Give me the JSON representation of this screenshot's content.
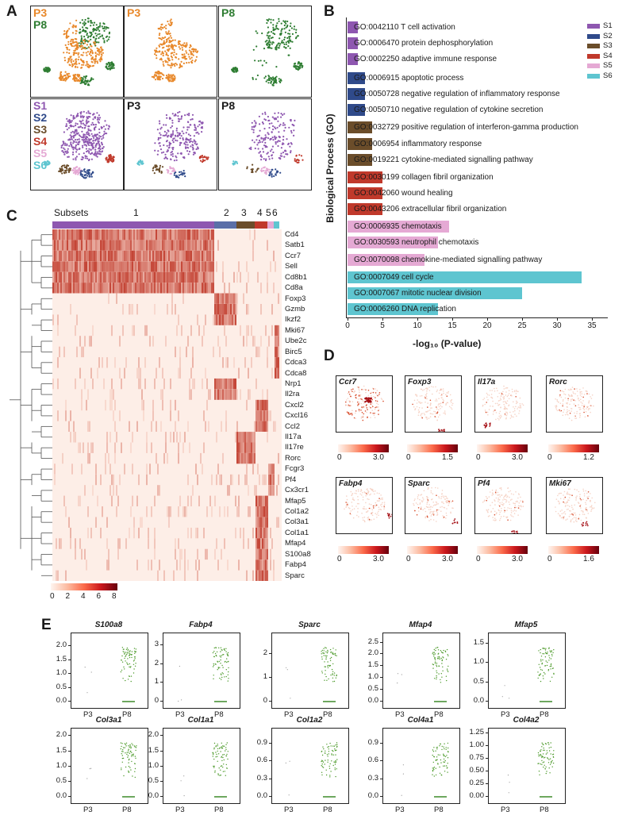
{
  "panels": {
    "a": "A",
    "b": "B",
    "c": "C",
    "d": "D",
    "e": "E"
  },
  "tsne": {
    "top": [
      {
        "labels": [
          "P3",
          "P8"
        ],
        "colors": [
          "#e8882a",
          "#2e7d32"
        ]
      },
      {
        "labels": [
          "P3"
        ],
        "colors": [
          "#e8882a"
        ]
      },
      {
        "labels": [
          "P8"
        ],
        "colors": [
          "#2e7d32"
        ]
      }
    ],
    "bottom": [
      {
        "labels": [
          "S1",
          "S2",
          "S3",
          "S4",
          "S5",
          "S6"
        ],
        "colors": [
          "#8e57b0",
          "#2f4a8a",
          "#6b4d2a",
          "#c0392b",
          "#e5a9d4",
          "#5ec5d0"
        ]
      },
      {
        "labels": [
          "P3"
        ],
        "colors": [
          "#1a1a1a"
        ]
      },
      {
        "labels": [
          "P8"
        ],
        "colors": [
          "#1a1a1a"
        ]
      }
    ]
  },
  "go": {
    "ylabel": "Biological Process (GO)",
    "xlabel": "-log₁₀ (P-value)",
    "xticks": [
      "0",
      "5",
      "10",
      "15",
      "20",
      "25",
      "30",
      "35"
    ],
    "legend": [
      {
        "name": "S1",
        "color": "#8e57b0"
      },
      {
        "name": "S2",
        "color": "#2f4a8a"
      },
      {
        "name": "S3",
        "color": "#6b4d2a"
      },
      {
        "name": "S4",
        "color": "#c0392b"
      },
      {
        "name": "S5",
        "color": "#e5a9d4"
      },
      {
        "name": "S6",
        "color": "#5ec5d0"
      }
    ],
    "terms": [
      {
        "label": "GO:0042110 T cell activation",
        "value": 1.5,
        "color": "#8e57b0"
      },
      {
        "label": "GO:0006470 protein dephosphorylation",
        "value": 1.5,
        "color": "#8e57b0"
      },
      {
        "label": "GO:0002250 adaptive immune response",
        "value": 1.5,
        "color": "#8e57b0"
      },
      {
        "label": "GO:0006915 apoptotic process",
        "value": 2.5,
        "color": "#2f4a8a"
      },
      {
        "label": "GO:0050728 negative regulation of inflammatory response",
        "value": 2.5,
        "color": "#2f4a8a"
      },
      {
        "label": "GO:0050710 negative regulation of cytokine secretion",
        "value": 2.5,
        "color": "#2f4a8a"
      },
      {
        "label": "GO:0032729 positive regulation of interferon-gamma production",
        "value": 3.5,
        "color": "#6b4d2a"
      },
      {
        "label": "GO:0006954 inflammatory response",
        "value": 3.5,
        "color": "#6b4d2a"
      },
      {
        "label": "GO:0019221 cytokine-mediated signalling pathway",
        "value": 3.5,
        "color": "#6b4d2a"
      },
      {
        "label": "GO:0030199 collagen fibril organization",
        "value": 5,
        "color": "#c0392b"
      },
      {
        "label": "GO:0042060 wound healing",
        "value": 5,
        "color": "#c0392b"
      },
      {
        "label": "GO:0043206 extracellular fibril organization",
        "value": 5,
        "color": "#c0392b"
      },
      {
        "label": "GO:0006935 chemotaxis",
        "value": 14.5,
        "color": "#e5a9d4"
      },
      {
        "label": "GO:0030593 neutrophil chemotaxis",
        "value": 13,
        "color": "#e5a9d4"
      },
      {
        "label": "GO:0070098 chemokine-mediated signalling pathway",
        "value": 11,
        "color": "#e5a9d4"
      },
      {
        "label": "GO:0007049 cell cycle",
        "value": 33.5,
        "color": "#5ec5d0"
      },
      {
        "label": "GO:0007067 mitotic nuclear division",
        "value": 25,
        "color": "#5ec5d0"
      },
      {
        "label": "GO:0006260 DNA replication",
        "value": 13,
        "color": "#5ec5d0"
      }
    ]
  },
  "heatmap": {
    "subsets_label": "Subsets",
    "subsets": [
      {
        "label": "1",
        "color": "#8e57b0"
      },
      {
        "label": "2",
        "color": "#5a6fa8"
      },
      {
        "label": "3",
        "color": "#6b4d2a"
      },
      {
        "label": "4",
        "color": "#c0392b"
      },
      {
        "label": "5",
        "color": "#e5a9d4"
      },
      {
        "label": "6",
        "color": "#5ec5d0"
      }
    ],
    "genes": [
      "Cd4",
      "Satb1",
      "Ccr7",
      "Sell",
      "Cd8b1",
      "Cd8a",
      "Foxp3",
      "Gzmb",
      "Ikzf2",
      "Mki67",
      "Ube2c",
      "Birc5",
      "Cdca3",
      "Cdca8",
      "Nrp1",
      "Il2ra",
      "Cxcl2",
      "Cxcl16",
      "Ccl2",
      "Il17a",
      "Il17re",
      "Rorc",
      "Fcgr3",
      "Pf4",
      "Cx3cr1",
      "Mfap5",
      "Col1a2",
      "Col3a1",
      "Col1a1",
      "Mfap4",
      "S100a8",
      "Fabp4",
      "Sparc"
    ],
    "scale_ticks": [
      "0",
      "2",
      "4",
      "6",
      "8"
    ]
  },
  "feature_plots": [
    {
      "gene": "Ccr7",
      "max": "3.0"
    },
    {
      "gene": "Foxp3",
      "max": "1.5"
    },
    {
      "gene": "Il17a",
      "max": "3.0"
    },
    {
      "gene": "Rorc",
      "max": "1.2"
    },
    {
      "gene": "Fabp4",
      "max": "3.0"
    },
    {
      "gene": "Sparc",
      "max": "3.0"
    },
    {
      "gene": "Pf4",
      "max": "3.0"
    },
    {
      "gene": "Mki67",
      "max": "1.6"
    }
  ],
  "feature_min": "0",
  "violin": {
    "groups": [
      "P3",
      "P8"
    ],
    "plots": [
      {
        "gene": "S100a8",
        "yticks": [
          "0.0",
          "0.5",
          "1.0",
          "1.5",
          "2.0"
        ],
        "ymax": 2.3
      },
      {
        "gene": "Fabp4",
        "yticks": [
          "0",
          "1",
          "2",
          "3"
        ],
        "ymax": 3.4
      },
      {
        "gene": "Sparc",
        "yticks": [
          "0",
          "1",
          "2"
        ],
        "ymax": 2.7
      },
      {
        "gene": "Mfap4",
        "yticks": [
          "0.0",
          "0.5",
          "1.0",
          "1.5",
          "2.0",
          "2.5"
        ],
        "ymax": 2.7
      },
      {
        "gene": "Mfap5",
        "yticks": [
          "0.0",
          "0.5",
          "1.0",
          "1.5"
        ],
        "ymax": 1.65
      },
      {
        "gene": "Col3a1",
        "yticks": [
          "0.0",
          "0.5",
          "1.0",
          "1.5",
          "2.0"
        ],
        "ymax": 2.1
      },
      {
        "gene": "Col1a1",
        "yticks": [
          "0.0",
          "0.5",
          "1.0",
          "1.5",
          "2.0"
        ],
        "ymax": 2.1
      },
      {
        "gene": "Col1a2",
        "yticks": [
          "0.0",
          "0.3",
          "0.6",
          "0.9"
        ],
        "ymax": 1.08
      },
      {
        "gene": "Col4a1",
        "yticks": [
          "0.0",
          "0.3",
          "0.6",
          "0.9"
        ],
        "ymax": 1.08
      },
      {
        "gene": "Col4a2",
        "yticks": [
          "0.00",
          "0.25",
          "0.50",
          "0.75",
          "1.00",
          "1.25"
        ],
        "ymax": 1.25
      }
    ]
  }
}
